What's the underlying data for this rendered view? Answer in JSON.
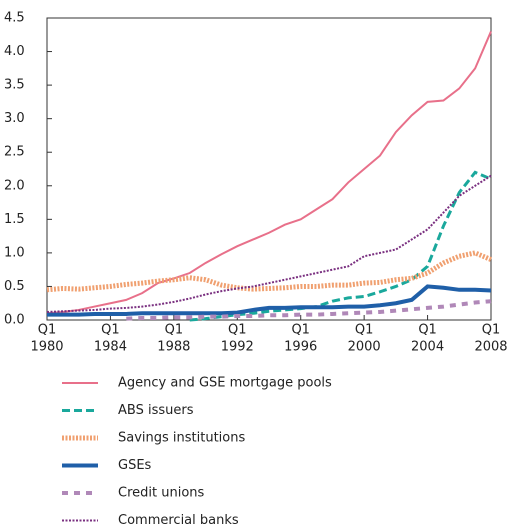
{
  "chart_data": {
    "type": "line",
    "x": [
      1980,
      1981,
      1982,
      1983,
      1984,
      1985,
      1986,
      1987,
      1988,
      1989,
      1990,
      1991,
      1992,
      1993,
      1994,
      1995,
      1996,
      1997,
      1998,
      1999,
      2000,
      2001,
      2002,
      2003,
      2004,
      2005,
      2006,
      2007,
      2008
    ],
    "xlim": [
      1980,
      2008
    ],
    "xtick_quarter": "Q1",
    "xticks": [
      {
        "value": 1980,
        "label": "1980"
      },
      {
        "value": 1984,
        "label": "1984"
      },
      {
        "value": 1988,
        "label": "1988"
      },
      {
        "value": 1992,
        "label": "1992"
      },
      {
        "value": 1996,
        "label": "1996"
      },
      {
        "value": 2000,
        "label": "2000"
      },
      {
        "value": 2004,
        "label": "2004"
      },
      {
        "value": 2008,
        "label": "2008"
      }
    ],
    "ylim": [
      0,
      4.5
    ],
    "yticks": [
      {
        "value": 0,
        "label": "0.0"
      },
      0.5,
      {
        "value": 1,
        "label": "1.0"
      },
      1.5,
      {
        "value": 2,
        "label": "2.0"
      },
      2.5,
      {
        "value": 3,
        "label": "3.0"
      },
      3.5,
      {
        "value": 4,
        "label": "4.0"
      },
      4.5
    ],
    "series": [
      {
        "name": "Agency and GSE mortgage pools",
        "color": "#e8708a",
        "dash": "solid",
        "width": 2,
        "values": [
          0.1,
          0.12,
          0.15,
          0.2,
          0.25,
          0.3,
          0.4,
          0.55,
          0.62,
          0.7,
          0.85,
          0.98,
          1.1,
          1.2,
          1.3,
          1.42,
          1.5,
          1.65,
          1.8,
          2.05,
          2.25,
          2.45,
          2.8,
          3.05,
          3.25,
          3.27,
          3.45,
          3.75,
          4.3
        ]
      },
      {
        "name": "ABS issuers",
        "color": "#1aa89c",
        "dash": "dashed",
        "width": 3,
        "values": [
          null,
          null,
          null,
          null,
          null,
          null,
          null,
          null,
          null,
          0.0,
          0.02,
          0.05,
          0.08,
          0.1,
          0.13,
          0.15,
          0.17,
          0.2,
          0.28,
          0.33,
          0.35,
          0.42,
          0.5,
          0.6,
          0.8,
          1.4,
          1.9,
          2.2,
          2.1
        ]
      },
      {
        "name": "Savings institutions",
        "color": "#f0a070",
        "dash": "dotted",
        "width": 5,
        "values": [
          0.45,
          0.47,
          0.46,
          0.48,
          0.5,
          0.53,
          0.55,
          0.58,
          0.6,
          0.63,
          0.6,
          0.52,
          0.48,
          0.46,
          0.47,
          0.48,
          0.5,
          0.5,
          0.52,
          0.52,
          0.55,
          0.56,
          0.6,
          0.62,
          0.7,
          0.85,
          0.95,
          1.0,
          0.9
        ]
      },
      {
        "name": "GSEs",
        "color": "#1f5fa8",
        "dash": "solid",
        "width": 4,
        "values": [
          0.08,
          0.08,
          0.08,
          0.09,
          0.09,
          0.09,
          0.1,
          0.1,
          0.1,
          0.1,
          0.1,
          0.1,
          0.11,
          0.15,
          0.18,
          0.18,
          0.19,
          0.19,
          0.19,
          0.2,
          0.2,
          0.22,
          0.25,
          0.3,
          0.5,
          0.48,
          0.45,
          0.45,
          0.44
        ]
      },
      {
        "name": "Credit unions",
        "color": "#b088b8",
        "dash": "dashed2",
        "width": 4,
        "values": [
          null,
          null,
          null,
          null,
          null,
          0.02,
          0.03,
          0.03,
          0.04,
          0.04,
          0.05,
          0.05,
          0.06,
          0.06,
          0.07,
          0.07,
          0.08,
          0.08,
          0.09,
          0.1,
          0.11,
          0.12,
          0.14,
          0.16,
          0.18,
          0.2,
          0.23,
          0.26,
          0.28
        ]
      },
      {
        "name": "Commercial banks",
        "color": "#7a3080",
        "dash": "dotted",
        "width": 2,
        "values": [
          0.12,
          0.13,
          0.14,
          0.15,
          0.17,
          0.18,
          0.2,
          0.23,
          0.27,
          0.32,
          0.38,
          0.43,
          0.47,
          0.5,
          0.55,
          0.6,
          0.65,
          0.7,
          0.75,
          0.8,
          0.95,
          1.0,
          1.05,
          1.2,
          1.35,
          1.6,
          1.85,
          2.0,
          2.15
        ]
      }
    ]
  }
}
